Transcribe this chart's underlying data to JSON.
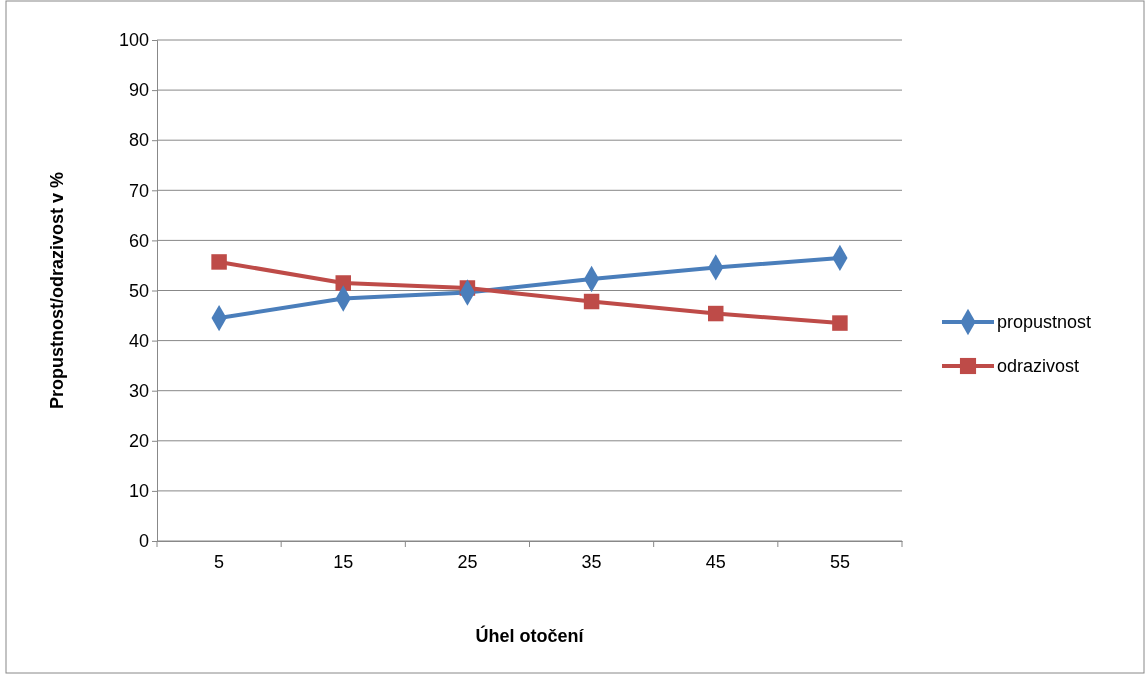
{
  "chart_data": {
    "type": "line",
    "xlabel": "Úhel otočení",
    "ylabel": "Propustnost/odrazivost v %",
    "categories": [
      "5",
      "15",
      "25",
      "35",
      "45",
      "55"
    ],
    "series": [
      {
        "name": "propustnost",
        "color": "#4a7ebb",
        "marker": "diamond",
        "values": [
          44.5,
          48.4,
          49.6,
          52.3,
          54.6,
          56.5
        ]
      },
      {
        "name": "odrazivost",
        "color": "#be4b48",
        "marker": "square",
        "values": [
          55.7,
          51.5,
          50.5,
          47.8,
          45.4,
          43.5
        ]
      }
    ],
    "ylim": [
      0,
      100
    ],
    "yticks": [
      0,
      10,
      20,
      30,
      40,
      50,
      60,
      70,
      80,
      90,
      100
    ],
    "grid": "y",
    "legend": "right"
  }
}
